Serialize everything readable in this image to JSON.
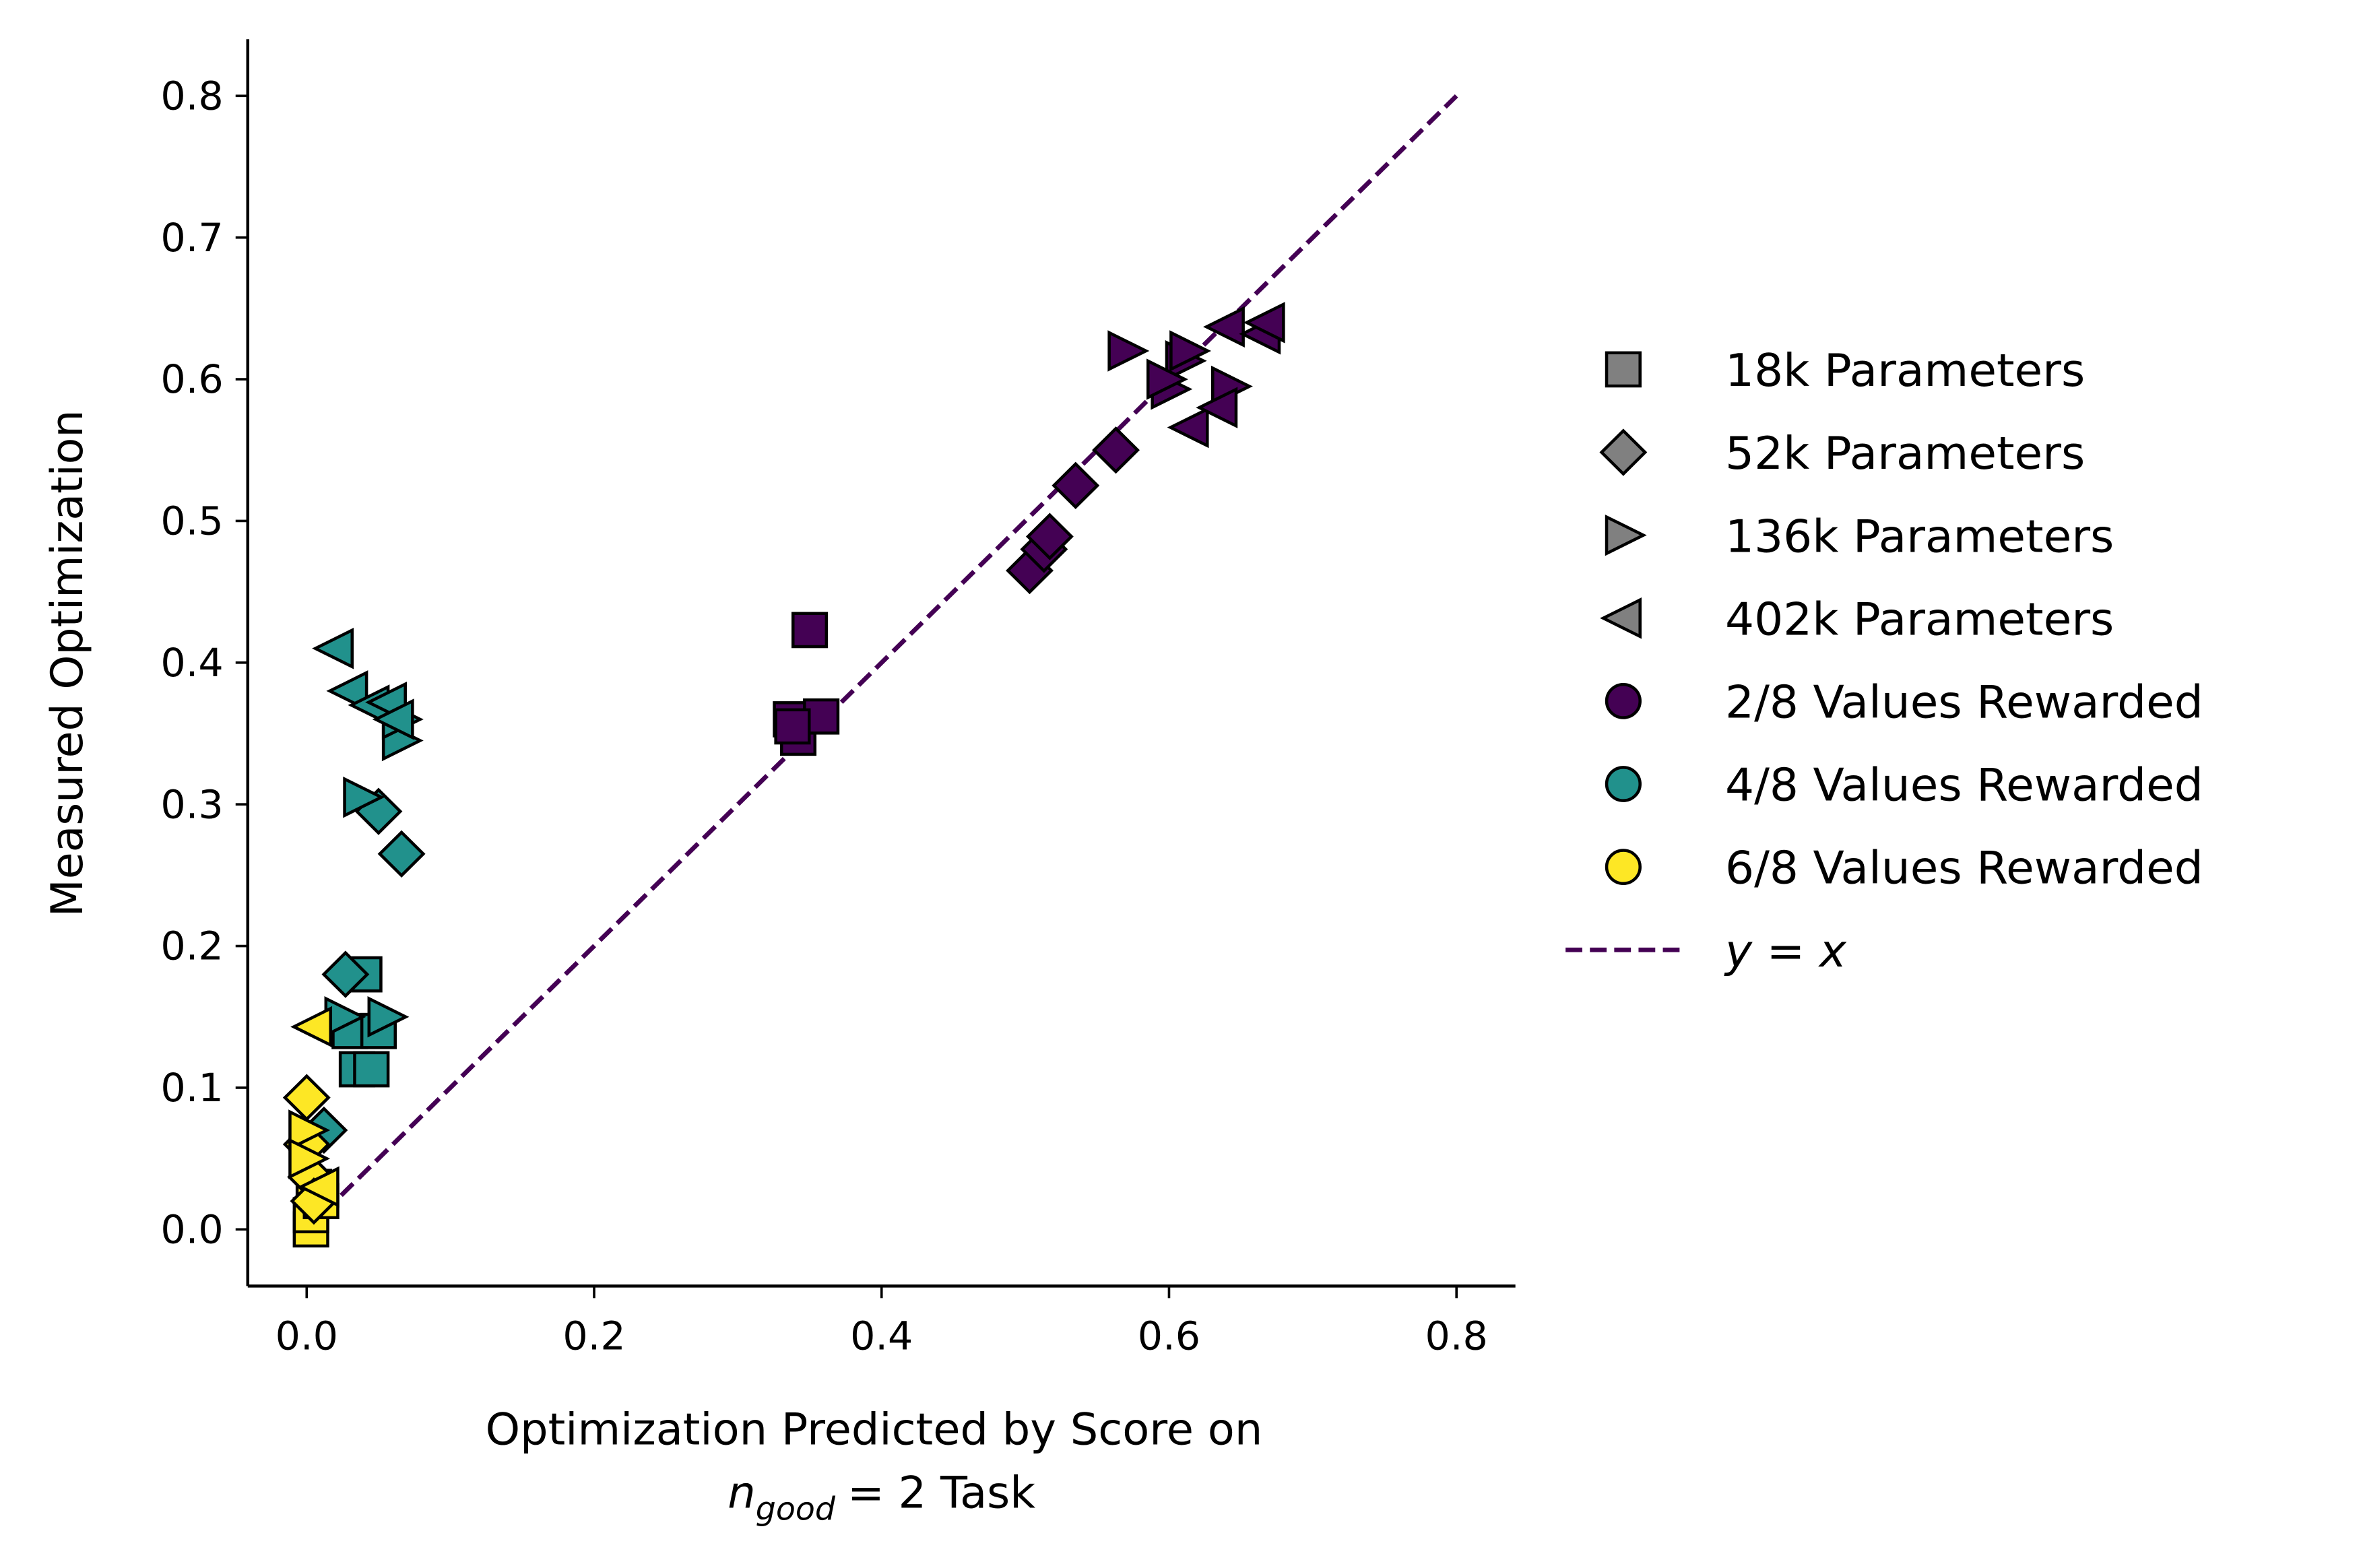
{
  "chart_data": {
    "type": "scatter",
    "xlabel": {
      "line1": "Optimization Predicted by Score on",
      "var": "n",
      "sub": "good",
      "rest": "= 2 Task"
    },
    "ylabel": "Measured Optimization",
    "xlim": [
      -0.041,
      0.841
    ],
    "ylim": [
      -0.04,
      0.84
    ],
    "xticks": [
      {
        "value": 0,
        "label": "0.0"
      },
      0.2,
      0.4,
      0.6,
      0.8
    ],
    "yticks": [
      {
        "value": 0,
        "label": "0.0"
      },
      0.1,
      0.2,
      0.3,
      0.4,
      0.5,
      0.6,
      0.7,
      0.8
    ],
    "legend": [
      {
        "label": "18k Parameters",
        "marker": "square",
        "color": "#808080"
      },
      {
        "label": "52k Parameters",
        "marker": "diamond",
        "color": "#808080"
      },
      {
        "label": "136k Parameters",
        "marker": "triangle-right",
        "color": "#808080"
      },
      {
        "label": "402k Parameters",
        "marker": "triangle-left",
        "color": "#808080"
      },
      {
        "label": "2/8 Values Rewarded",
        "marker": "circle",
        "color": "#440154"
      },
      {
        "label": "4/8 Values Rewarded",
        "marker": "circle",
        "color": "#21918c"
      },
      {
        "label": "6/8 Values Rewarded",
        "marker": "circle",
        "color": "#fde725"
      }
    ],
    "reference_line": {
      "label": "y = x",
      "color": "#440154",
      "x": [
        0,
        0.8
      ],
      "y": [
        0,
        0.8
      ]
    },
    "series": [
      {
        "marker": "square",
        "color": "#440154",
        "x": [
          0.35,
          0.337,
          0.342,
          0.358,
          0.338
        ],
        "y": [
          0.423,
          0.36,
          0.347,
          0.362,
          0.355
        ]
      },
      {
        "marker": "diamond",
        "color": "#440154",
        "x": [
          0.503,
          0.513,
          0.517,
          0.535,
          0.563
        ],
        "y": [
          0.465,
          0.48,
          0.489,
          0.525,
          0.55
        ]
      },
      {
        "marker": "triangle-right",
        "color": "#440154",
        "x": [
          0.57,
          0.6,
          0.61,
          0.613,
          0.642,
          0.597
        ],
        "y": [
          0.62,
          0.593,
          0.613,
          0.62,
          0.595,
          0.6
        ]
      },
      {
        "marker": "triangle-left",
        "color": "#440154",
        "x": [
          0.615,
          0.635,
          0.64,
          0.665,
          0.668
        ],
        "y": [
          0.566,
          0.58,
          0.637,
          0.632,
          0.64
        ]
      },
      {
        "marker": "square",
        "color": "#21918c",
        "x": [
          0.04,
          0.03,
          0.05,
          0.035,
          0.045
        ],
        "y": [
          0.18,
          0.14,
          0.14,
          0.113,
          0.113
        ]
      },
      {
        "marker": "diamond",
        "color": "#21918c",
        "x": [
          0.05,
          0.066,
          0.027,
          0.012
        ],
        "y": [
          0.295,
          0.265,
          0.18,
          0.07
        ]
      },
      {
        "marker": "triangle-right",
        "color": "#21918c",
        "x": [
          0.038,
          0.065,
          0.065,
          0.025,
          0.055
        ],
        "y": [
          0.305,
          0.345,
          0.36,
          0.15,
          0.15
        ]
      },
      {
        "marker": "triangle-left",
        "color": "#21918c",
        "x": [
          0.02,
          0.03,
          0.045,
          0.057,
          0.062
        ],
        "y": [
          0.41,
          0.38,
          0.37,
          0.372,
          0.36
        ]
      },
      {
        "marker": "square",
        "color": "#fde725",
        "x": [
          0.003,
          0.003,
          0.005,
          0.01
        ],
        "y": [
          0.0,
          0.01,
          0.03,
          0.02
        ]
      },
      {
        "marker": "diamond",
        "color": "#fde725",
        "x": [
          0.0,
          0.0,
          0.003,
          0.005
        ],
        "y": [
          0.093,
          0.06,
          0.037,
          0.02
        ]
      },
      {
        "marker": "triangle-right",
        "color": "#fde725",
        "x": [
          0.0,
          0.0
        ],
        "y": [
          0.07,
          0.05
        ]
      },
      {
        "marker": "triangle-left",
        "color": "#fde725",
        "x": [
          0.005,
          0.01
        ],
        "y": [
          0.143,
          0.03
        ]
      }
    ]
  }
}
